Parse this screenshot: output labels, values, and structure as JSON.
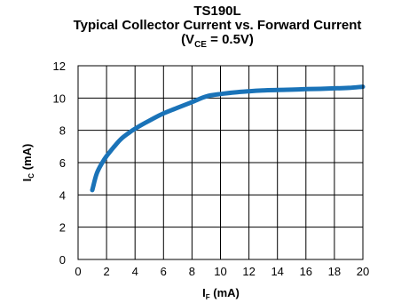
{
  "chart_data": {
    "type": "line",
    "title": "TS190L",
    "subtitle": "Typical Collector Current vs. Forward Current",
    "condition": {
      "prefix": "(V",
      "sub": "CE",
      "suffix": " = 0.5V)"
    },
    "xlabel": {
      "main": "I",
      "sub": "F",
      "unit": " (mA)"
    },
    "ylabel": {
      "main": "I",
      "sub": "C",
      "unit": " (mA)"
    },
    "xlim": [
      0,
      20
    ],
    "ylim": [
      0,
      12
    ],
    "xticks": [
      0,
      2,
      4,
      6,
      8,
      10,
      12,
      14,
      16,
      18,
      20
    ],
    "yticks": [
      0,
      2,
      4,
      6,
      8,
      10,
      12
    ],
    "grid": true,
    "series": [
      {
        "color": "#1a73b8",
        "x": [
          1.0,
          1.3,
          1.7,
          2.0,
          2.5,
          3.0,
          3.5,
          4.0,
          5.0,
          6.0,
          7.0,
          8.0,
          9.0,
          10.0,
          11.0,
          12.0,
          13.0,
          14.0,
          15.0,
          16.0,
          17.0,
          18.0,
          19.0,
          20.0
        ],
        "y": [
          4.3,
          5.3,
          6.0,
          6.4,
          6.95,
          7.45,
          7.8,
          8.1,
          8.6,
          9.05,
          9.4,
          9.75,
          10.1,
          10.25,
          10.35,
          10.42,
          10.47,
          10.5,
          10.52,
          10.55,
          10.57,
          10.6,
          10.63,
          10.7
        ]
      }
    ]
  }
}
